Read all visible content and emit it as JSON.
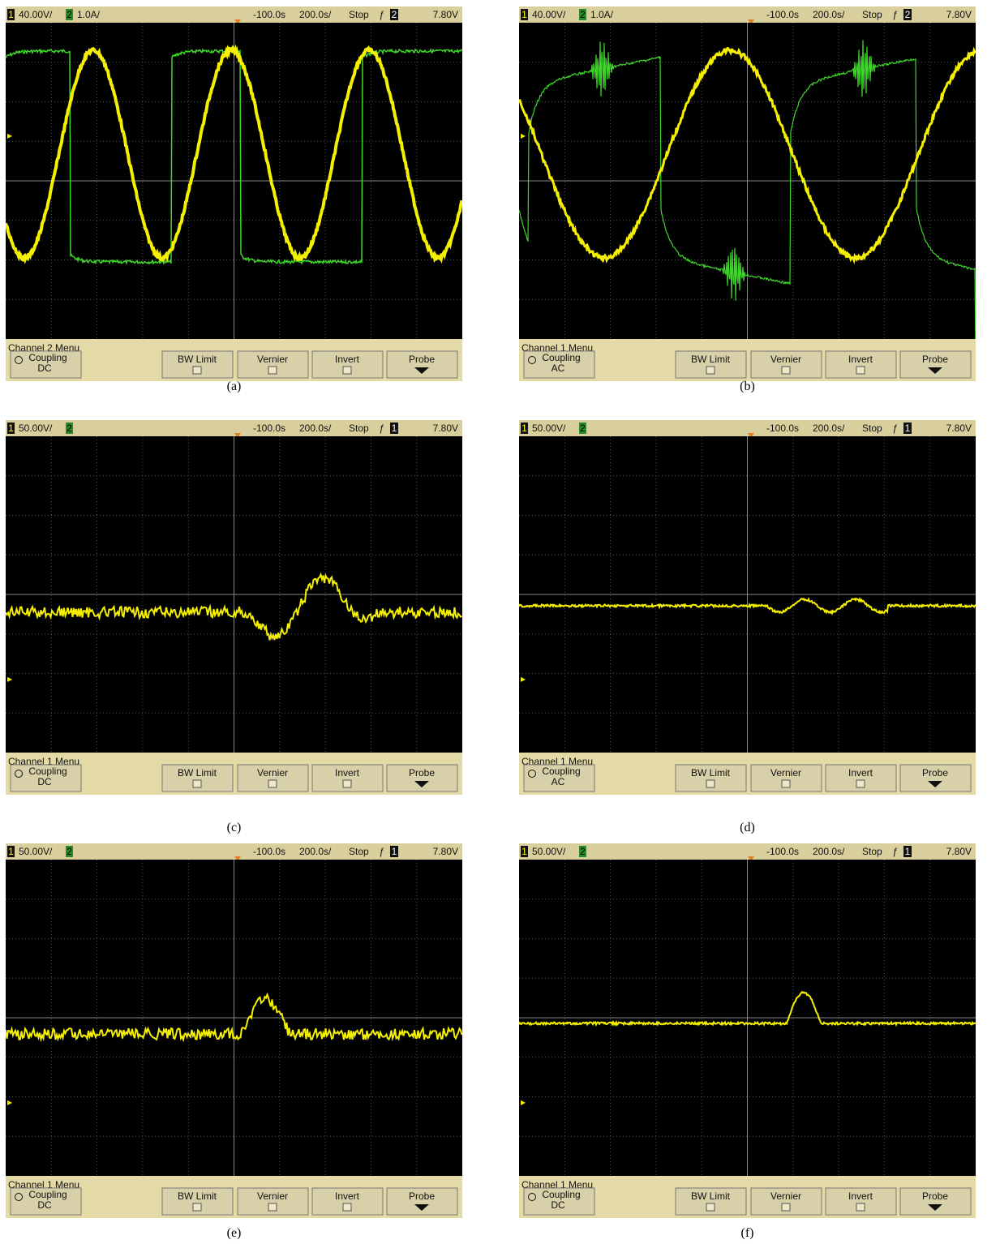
{
  "panels": [
    {
      "label": "(a)",
      "header": {
        "ch1": "1",
        "ch1_scale": "40.00V/",
        "ch2": "2",
        "ch2_scale": "1.0A/",
        "delay": "-100.0s",
        "timebase": "200.0s/",
        "run_state": "Stop",
        "trigger_channel": "2",
        "trigger_level": "7.80V"
      },
      "menu_title": "Channel 2 Menu",
      "softkeys": {
        "coupling": "Coupling",
        "coupling_value": "DC",
        "bw_limit": "BW Limit",
        "vernier": "Vernier",
        "invert": "Invert",
        "probe": "Probe"
      }
    },
    {
      "label": "(b)",
      "header": {
        "ch1": "1",
        "ch1_scale": "40.00V/",
        "ch2": "2",
        "ch2_scale": "1.0A/",
        "delay": "-100.0s",
        "timebase": "200.0s/",
        "run_state": "Stop",
        "trigger_channel": "2",
        "trigger_level": "7.80V"
      },
      "menu_title": "Channel 1 Menu",
      "softkeys": {
        "coupling": "Coupling",
        "coupling_value": "AC",
        "bw_limit": "BW Limit",
        "vernier": "Vernier",
        "invert": "Invert",
        "probe": "Probe"
      }
    },
    {
      "label": "(c)",
      "header": {
        "ch1": "1",
        "ch1_scale": "50.00V/",
        "ch2": "2",
        "delay": "-100.0s",
        "timebase": "200.0s/",
        "run_state": "Stop",
        "trigger_channel": "1",
        "trigger_level": "7.80V"
      },
      "menu_title": "Channel 1 Menu",
      "softkeys": {
        "coupling": "Coupling",
        "coupling_value": "DC",
        "bw_limit": "BW Limit",
        "vernier": "Vernier",
        "invert": "Invert",
        "probe": "Probe"
      }
    },
    {
      "label": "(d)",
      "header": {
        "ch1": "1",
        "ch1_scale": "50.00V/",
        "ch2": "2",
        "delay": "-100.0s",
        "timebase": "200.0s/",
        "run_state": "Stop",
        "trigger_channel": "1",
        "trigger_level": "7.80V"
      },
      "menu_title": "Channel 1 Menu",
      "softkeys": {
        "coupling": "Coupling",
        "coupling_value": "AC",
        "bw_limit": "BW Limit",
        "vernier": "Vernier",
        "invert": "Invert",
        "probe": "Probe"
      }
    },
    {
      "label": "(e)",
      "header": {
        "ch1": "1",
        "ch1_scale": "50.00V/",
        "ch2": "2",
        "delay": "-100.0s",
        "timebase": "200.0s/",
        "run_state": "Stop",
        "trigger_channel": "1",
        "trigger_level": "7.80V"
      },
      "menu_title": "Channel 1 Menu",
      "softkeys": {
        "coupling": "Coupling",
        "coupling_value": "DC",
        "bw_limit": "BW Limit",
        "vernier": "Vernier",
        "invert": "Invert",
        "probe": "Probe"
      }
    },
    {
      "label": "(f)",
      "header": {
        "ch1": "1",
        "ch1_scale": "50.00V/",
        "ch2": "2",
        "delay": "-100.0s",
        "timebase": "200.0s/",
        "run_state": "Stop",
        "trigger_channel": "1",
        "trigger_level": "7.80V"
      },
      "menu_title": "Channel 1 Menu",
      "softkeys": {
        "coupling": "Coupling",
        "coupling_value": "DC",
        "bw_limit": "BW Limit",
        "vernier": "Vernier",
        "invert": "Invert",
        "probe": "Probe"
      }
    }
  ]
}
